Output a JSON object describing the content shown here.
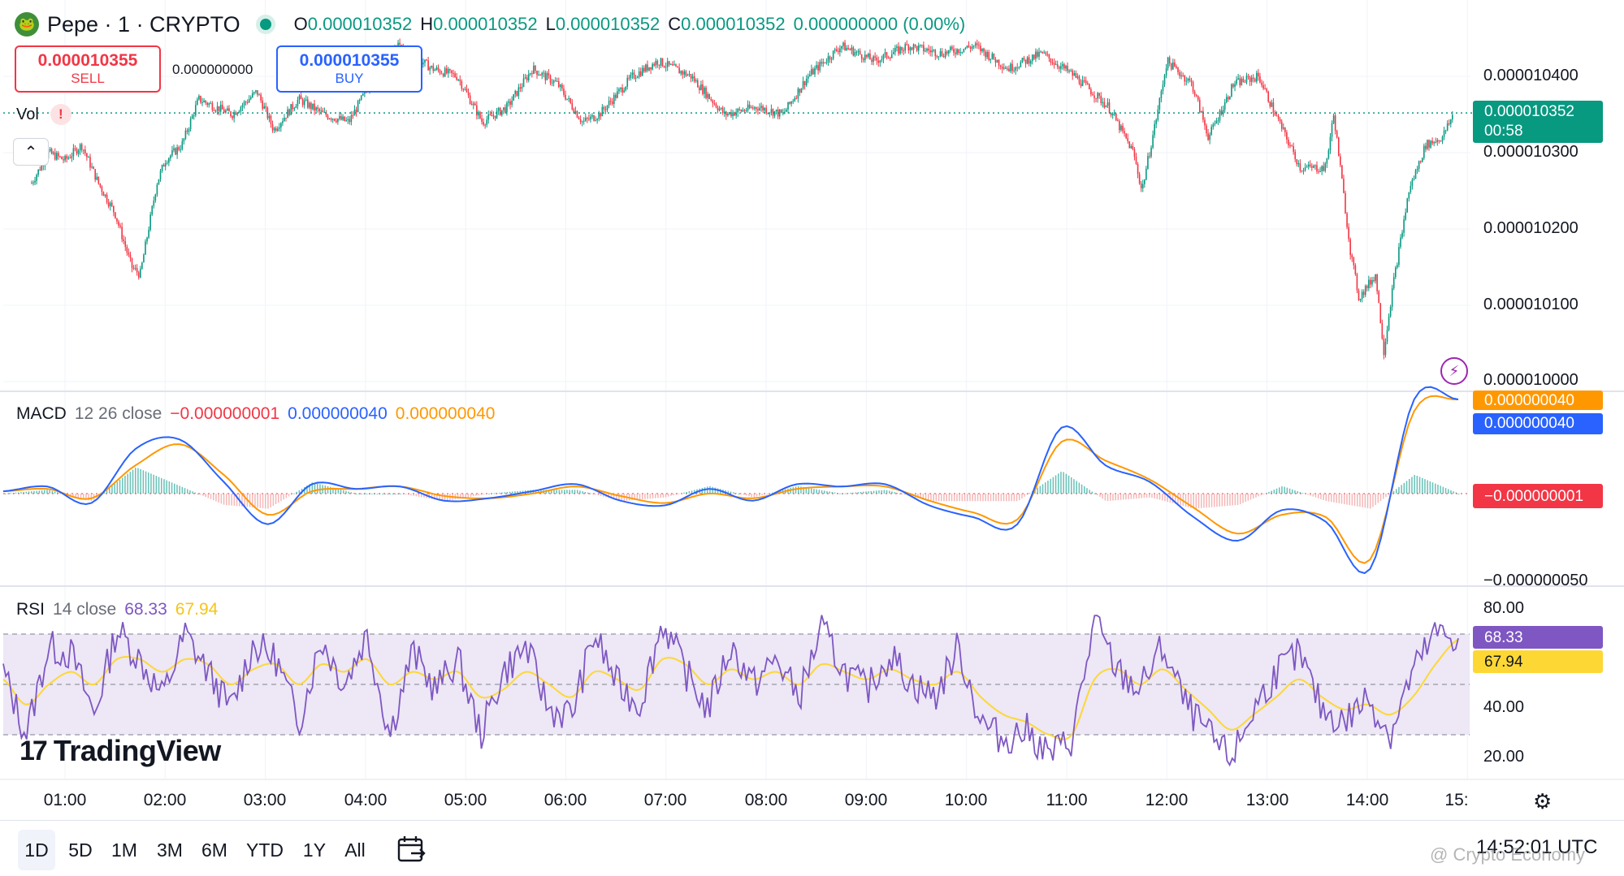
{
  "header": {
    "symbol": "Pepe · 1 · CRYPTO",
    "coin_icon": "frog-icon",
    "ohlc": [
      {
        "key": "O",
        "value": "0.000010352"
      },
      {
        "key": "H",
        "value": "0.000010352"
      },
      {
        "key": "L",
        "value": "0.000010352"
      },
      {
        "key": "C",
        "value": "0.000010352"
      }
    ],
    "change": "0.000000000 (0.00%)"
  },
  "trade": {
    "sell_price": "0.000010355",
    "sell_label": "SELL",
    "spread": "0.000000000",
    "buy_price": "0.000010355",
    "buy_label": "BUY"
  },
  "volume": {
    "label": "Vol",
    "warning_icon": "!"
  },
  "collapse_icon": "⌃",
  "price_axis": {
    "labels": [
      "0.000010400",
      "0.000010300",
      "0.000010200",
      "0.000010100",
      "0.000010000"
    ],
    "current_price": "0.000010352",
    "countdown": "00:58"
  },
  "macd": {
    "name": "MACD",
    "params": "12 26 close",
    "hist_value": "−0.000000001",
    "macd_value": "0.000000040",
    "signal_value": "0.000000040",
    "axis_bottom": "−0.000000050",
    "tag_signal": "0.000000040",
    "tag_macd": "0.000000040",
    "tag_hist": "−0.000000001"
  },
  "rsi": {
    "name": "RSI",
    "params": "14 close",
    "rsi_value": "68.33",
    "ma_value": "67.94",
    "axis_labels": [
      "80.00",
      "40.00",
      "20.00"
    ],
    "tag_rsi": "68.33",
    "tag_ma": "67.94"
  },
  "logo": {
    "mark": "17",
    "text": "TradingView"
  },
  "time_axis": [
    "01:00",
    "02:00",
    "03:00",
    "04:00",
    "05:00",
    "06:00",
    "07:00",
    "08:00",
    "09:00",
    "10:00",
    "11:00",
    "12:00",
    "13:00",
    "14:00",
    "15:"
  ],
  "ranges": [
    "1D",
    "5D",
    "1M",
    "3M",
    "6M",
    "YTD",
    "1Y",
    "All"
  ],
  "active_range": "1D",
  "clock": "14:52:01 UTC",
  "watermark": "@ Crypto Economy",
  "colors": {
    "up": "#089981",
    "down": "#f23645",
    "macd_line": "#2962ff",
    "signal_line": "#ff9800",
    "rsi_line": "#7e57c2",
    "rsi_ma": "#fdd835",
    "rsi_band": "#ede7f6"
  },
  "chart_data": [
    {
      "type": "candlestick",
      "title": "Pepe · 1 · CRYPTO",
      "ylim": [
        9.9e-06,
        1.045e-05
      ],
      "x_ticks": [
        "01:00",
        "02:00",
        "03:00",
        "04:00",
        "05:00",
        "06:00",
        "07:00",
        "08:00",
        "09:00",
        "10:00",
        "11:00",
        "12:00",
        "13:00",
        "14:00",
        "15:"
      ],
      "y_ticks": [
        1.04e-05,
        1.03e-05,
        1.02e-05,
        1.01e-05,
        1e-05
      ],
      "close_path": [
        [
          "00:40",
          1.026e-05
        ],
        [
          "00:50",
          1.03e-05
        ],
        [
          "01:00",
          1.029e-05
        ],
        [
          "01:10",
          1.031e-05
        ],
        [
          "01:20",
          1.026e-05
        ],
        [
          "01:30",
          1.022e-05
        ],
        [
          "01:40",
          1.015e-05
        ],
        [
          "01:45",
          1.014e-05
        ],
        [
          "01:55",
          1.026e-05
        ],
        [
          "02:00",
          1.029e-05
        ],
        [
          "02:10",
          1.031e-05
        ],
        [
          "02:20",
          1.037e-05
        ],
        [
          "02:40",
          1.035e-05
        ],
        [
          "02:55",
          1.038e-05
        ],
        [
          "03:05",
          1.033e-05
        ],
        [
          "03:20",
          1.037e-05
        ],
        [
          "03:35",
          1.035e-05
        ],
        [
          "03:50",
          1.034e-05
        ],
        [
          "04:05",
          1.04e-05
        ],
        [
          "04:20",
          1.044e-05
        ],
        [
          "04:40",
          1.041e-05
        ],
        [
          "04:55",
          1.04e-05
        ],
        [
          "05:10",
          1.034e-05
        ],
        [
          "05:25",
          1.036e-05
        ],
        [
          "05:40",
          1.041e-05
        ],
        [
          "05:55",
          1.039e-05
        ],
        [
          "06:10",
          1.034e-05
        ],
        [
          "06:20",
          1.035e-05
        ],
        [
          "06:40",
          1.04e-05
        ],
        [
          "06:55",
          1.042e-05
        ],
        [
          "07:15",
          1.04e-05
        ],
        [
          "07:35",
          1.035e-05
        ],
        [
          "07:55",
          1.036e-05
        ],
        [
          "08:10",
          1.035e-05
        ],
        [
          "08:25",
          1.04e-05
        ],
        [
          "08:45",
          1.044e-05
        ],
        [
          "09:05",
          1.042e-05
        ],
        [
          "09:25",
          1.044e-05
        ],
        [
          "09:45",
          1.043e-05
        ],
        [
          "10:05",
          1.044e-05
        ],
        [
          "10:25",
          1.041e-05
        ],
        [
          "10:45",
          1.043e-05
        ],
        [
          "11:05",
          1.04e-05
        ],
        [
          "11:25",
          1.036e-05
        ],
        [
          "11:40",
          1.03e-05
        ],
        [
          "11:45",
          1.025e-05
        ],
        [
          "11:55",
          1.036e-05
        ],
        [
          "12:00",
          1.042e-05
        ],
        [
          "12:15",
          1.039e-05
        ],
        [
          "12:25",
          1.032e-05
        ],
        [
          "12:40",
          1.039e-05
        ],
        [
          "12:55",
          1.04e-05
        ],
        [
          "13:05",
          1.035e-05
        ],
        [
          "13:20",
          1.028e-05
        ],
        [
          "13:35",
          1.028e-05
        ],
        [
          "13:40",
          1.035e-05
        ],
        [
          "13:50",
          1.017e-05
        ],
        [
          "13:55",
          1.011e-05
        ],
        [
          "14:05",
          1.014e-05
        ],
        [
          "14:10",
          1.004e-05
        ],
        [
          "14:15",
          1.012e-05
        ],
        [
          "14:25",
          1.025e-05
        ],
        [
          "14:35",
          1.031e-05
        ],
        [
          "14:45",
          1.032e-05
        ],
        [
          "14:52",
          1.0352e-05
        ]
      ],
      "current": 1.0352e-05
    },
    {
      "type": "line",
      "title": "MACD",
      "ylim": [
        -5e-08,
        5e-08
      ],
      "series": [
        {
          "name": "MACD",
          "values": [
            1e-09,
            3e-09,
            -4e-09,
            1.9e-08,
            2.3e-08,
            5e-09,
            -1.3e-08,
            4e-09,
            2e-09,
            3e-09,
            -3e-09,
            -2e-09,
            1e-09,
            4e-09,
            -3e-09,
            -5e-09,
            2e-09,
            -3e-09,
            4e-09,
            3e-09,
            4e-09,
            -5e-09,
            -1e-08,
            -1.3e-08,
            2.8e-08,
            1.2e-08,
            5e-09,
            -1e-08,
            -2e-08,
            -7e-09,
            -1.2e-08,
            -3.2e-08,
            4e-08,
            4e-08
          ]
        },
        {
          "name": "Signal",
          "values": [
            1e-09,
            2e-09,
            -2e-09,
            1.2e-08,
            2.1e-08,
            8e-09,
            -9e-09,
            1e-09,
            2e-09,
            3e-09,
            -1e-09,
            -2e-09,
            0.0,
            3e-09,
            -1e-09,
            -4e-09,
            0.0,
            -2e-09,
            2e-09,
            3e-09,
            3e-09,
            -3e-09,
            -8e-09,
            -1.1e-08,
            2.2e-08,
            1.4e-08,
            6e-09,
            -6e-09,
            -1.7e-08,
            -9e-09,
            -1e-08,
            -2.8e-08,
            3.5e-08,
            4e-08
          ]
        }
      ]
    },
    {
      "type": "line",
      "title": "RSI",
      "ylim": [
        15,
        85
      ],
      "bands": [
        30,
        70
      ],
      "series": [
        {
          "name": "RSI",
          "values": [
            55,
            30,
            65,
            62,
            38,
            72,
            60,
            45,
            70,
            55,
            40,
            66,
            60,
            35,
            68,
            50,
            70,
            30,
            63,
            48,
            60,
            30,
            55,
            65,
            40,
            38,
            70,
            50,
            42,
            75,
            55,
            40,
            65,
            50,
            60,
            45,
            72,
            55,
            48,
            62,
            50,
            45,
            65,
            35,
            28,
            32,
            22,
            28,
            75,
            55,
            48,
            65,
            42,
            30,
            20,
            40,
            55,
            62,
            40,
            35,
            45,
            30,
            55,
            70,
            68.33
          ]
        },
        {
          "name": "RSI MA",
          "values": [
            52,
            42,
            50,
            55,
            50,
            60,
            60,
            55,
            60,
            58,
            50,
            56,
            58,
            50,
            58,
            55,
            60,
            50,
            55,
            52,
            55,
            45,
            48,
            55,
            50,
            45,
            55,
            52,
            48,
            60,
            58,
            50,
            56,
            52,
            55,
            50,
            58,
            55,
            52,
            56,
            52,
            50,
            55,
            45,
            38,
            35,
            30,
            30,
            52,
            56,
            50,
            56,
            48,
            40,
            32,
            38,
            45,
            52,
            45,
            40,
            42,
            38,
            45,
            58,
            67.94
          ]
        }
      ]
    }
  ]
}
